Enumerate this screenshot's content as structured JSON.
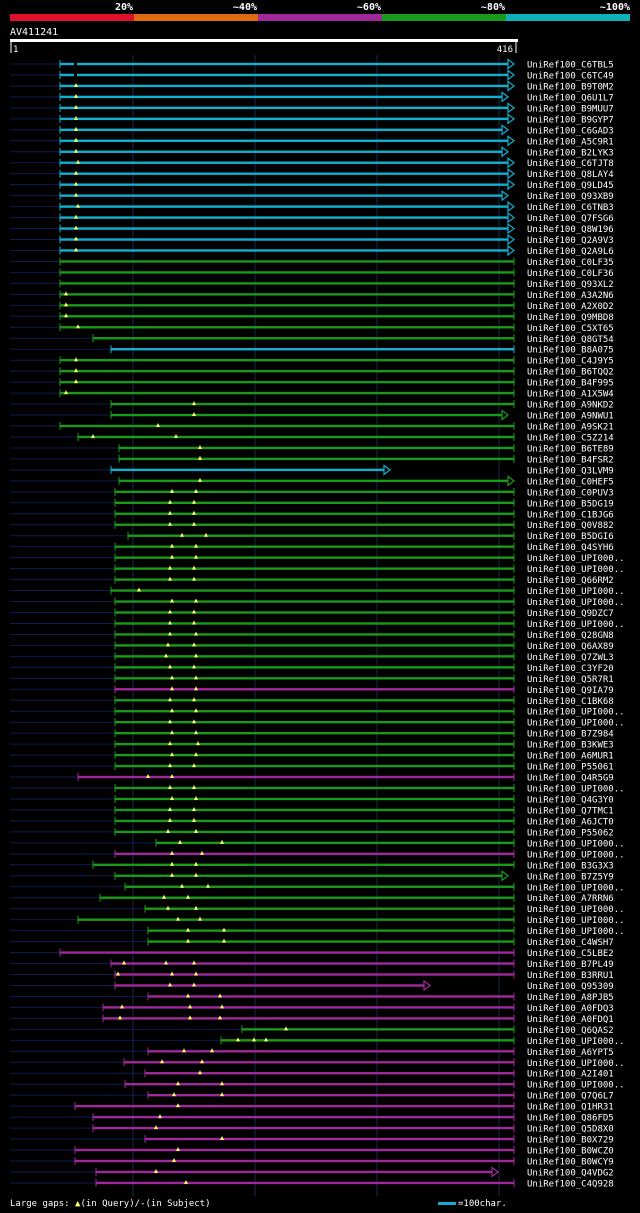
{
  "header": {
    "scale_labels": [
      "20%",
      "~40%",
      "~60%",
      "~80%",
      "~100%"
    ],
    "scale_colors": [
      "#e0102a",
      "#e06a10",
      "#a0289a",
      "#1a9a1a",
      "#10b0b8"
    ],
    "query_name": "AV411241",
    "ruler_start": "1",
    "ruler_end": "416"
  },
  "footer": {
    "gaps_label": "Large gaps: ",
    "query_marker": "▲",
    "query_text": "(in Query)/",
    "subject_marker": "-",
    "subject_text": "(in Subject)",
    "legend_text": "=100char."
  },
  "colors": {
    "cyan": "#10b0d0",
    "green": "#1a9a1a",
    "purple": "#a0289a",
    "navy": "#101a50",
    "grid": "#1a2a4a"
  },
  "hits": [
    {
      "label": "UniRef100_C6TBL5",
      "color": "cyan",
      "start": 60,
      "end": 514,
      "end_mark": "tri",
      "markers": [],
      "dot": 75
    },
    {
      "label": "UniRef100_C6TC49",
      "color": "cyan",
      "start": 60,
      "end": 514,
      "end_mark": "tri",
      "markers": [],
      "dot": 75
    },
    {
      "label": "UniRef100_B9T0M2",
      "color": "cyan",
      "start": 60,
      "end": 514,
      "end_mark": "tri",
      "markers": [
        76
      ]
    },
    {
      "label": "UniRef100_Q6U1L7",
      "color": "cyan",
      "start": 60,
      "end": 508,
      "end_mark": "tri",
      "markers": [
        76
      ]
    },
    {
      "label": "UniRef100_B9MUU7",
      "color": "cyan",
      "start": 60,
      "end": 514,
      "end_mark": "tri",
      "markers": [
        76
      ]
    },
    {
      "label": "UniRef100_B9GYP7",
      "color": "cyan",
      "start": 60,
      "end": 514,
      "end_mark": "tri",
      "markers": [
        76
      ]
    },
    {
      "label": "UniRef100_C6GAD3",
      "color": "cyan",
      "start": 60,
      "end": 508,
      "end_mark": "tri",
      "markers": [
        76
      ]
    },
    {
      "label": "UniRef100_A5C9R1",
      "color": "cyan",
      "start": 60,
      "end": 514,
      "end_mark": "tri",
      "markers": [
        76
      ]
    },
    {
      "label": "UniRef100_B2LYK3",
      "color": "cyan",
      "start": 60,
      "end": 508,
      "end_mark": "tri",
      "markers": [
        76
      ]
    },
    {
      "label": "UniRef100_C6TJT8",
      "color": "cyan",
      "start": 60,
      "end": 514,
      "end_mark": "tri",
      "markers": [
        78
      ]
    },
    {
      "label": "UniRef100_Q8LAY4",
      "color": "cyan",
      "start": 60,
      "end": 514,
      "end_mark": "tri",
      "markers": [
        76
      ]
    },
    {
      "label": "UniRef100_Q9LD45",
      "color": "cyan",
      "start": 60,
      "end": 514,
      "end_mark": "tri",
      "markers": [
        76
      ]
    },
    {
      "label": "UniRef100_Q93XB9",
      "color": "cyan",
      "start": 60,
      "end": 508,
      "end_mark": "tri",
      "markers": [
        76
      ]
    },
    {
      "label": "UniRef100_C6TNB3",
      "color": "cyan",
      "start": 60,
      "end": 514,
      "end_mark": "tri",
      "markers": [
        78
      ]
    },
    {
      "label": "UniRef100_Q7FSG6",
      "color": "cyan",
      "start": 60,
      "end": 514,
      "end_mark": "tri",
      "markers": [
        76
      ]
    },
    {
      "label": "UniRef100_Q8W196",
      "color": "cyan",
      "start": 60,
      "end": 514,
      "end_mark": "tri",
      "markers": [
        76
      ]
    },
    {
      "label": "UniRef100_Q2A9V3",
      "color": "cyan",
      "start": 60,
      "end": 514,
      "end_mark": "tri",
      "markers": [
        76
      ]
    },
    {
      "label": "UniRef100_Q2A9L6",
      "color": "cyan",
      "start": 60,
      "end": 514,
      "end_mark": "tri",
      "markers": [
        76
      ]
    },
    {
      "label": "UniRef100_C0LF35",
      "color": "green",
      "start": 60,
      "end": 514,
      "end_mark": "line",
      "markers": []
    },
    {
      "label": "UniRef100_C0LF36",
      "color": "green",
      "start": 60,
      "end": 514,
      "end_mark": "line",
      "markers": []
    },
    {
      "label": "UniRef100_Q93XL2",
      "color": "green",
      "start": 60,
      "end": 514,
      "end_mark": "line",
      "markers": []
    },
    {
      "label": "UniRef100_A3A2N6",
      "color": "green",
      "start": 60,
      "end": 514,
      "end_mark": "line",
      "markers": [
        66
      ]
    },
    {
      "label": "UniRef100_A2X0D2",
      "color": "green",
      "start": 60,
      "end": 514,
      "end_mark": "line",
      "markers": [
        66
      ]
    },
    {
      "label": "UniRef100_Q9MBD8",
      "color": "green",
      "start": 60,
      "end": 514,
      "end_mark": "line",
      "markers": [
        66
      ]
    },
    {
      "label": "UniRef100_C5XT65",
      "color": "green",
      "start": 60,
      "end": 514,
      "end_mark": "line",
      "markers": [
        78
      ]
    },
    {
      "label": "UniRef100_Q8GT54",
      "color": "green",
      "start": 93,
      "end": 514,
      "end_mark": "line",
      "markers": []
    },
    {
      "label": "UniRef100_B8A075",
      "color": "cyan",
      "start": 111,
      "end": 514,
      "end_mark": "line",
      "markers": []
    },
    {
      "label": "UniRef100_C4J9Y5",
      "color": "green",
      "start": 60,
      "end": 514,
      "end_mark": "line",
      "markers": [
        76
      ]
    },
    {
      "label": "UniRef100_B6TQQ2",
      "color": "green",
      "start": 60,
      "end": 514,
      "end_mark": "line",
      "markers": [
        76
      ]
    },
    {
      "label": "UniRef100_B4F995",
      "color": "green",
      "start": 60,
      "end": 514,
      "end_mark": "line",
      "markers": [
        76
      ]
    },
    {
      "label": "UniRef100_A1X5W4",
      "color": "green",
      "start": 60,
      "end": 514,
      "end_mark": "line",
      "markers": [
        66
      ]
    },
    {
      "label": "UniRef100_A9NKD2",
      "color": "green",
      "start": 111,
      "end": 514,
      "end_mark": "line",
      "markers": [
        194
      ]
    },
    {
      "label": "UniRef100_A9NWU1",
      "color": "green",
      "start": 111,
      "end": 508,
      "end_mark": "tri",
      "markers": [
        194
      ]
    },
    {
      "label": "UniRef100_A9SK21",
      "color": "green",
      "start": 60,
      "end": 514,
      "end_mark": "line",
      "markers": [
        158
      ]
    },
    {
      "label": "UniRef100_C5Z214",
      "color": "green",
      "start": 78,
      "end": 514,
      "end_mark": "line",
      "markers": [
        93,
        176
      ]
    },
    {
      "label": "UniRef100_B6TE89",
      "color": "green",
      "start": 119,
      "end": 514,
      "end_mark": "line",
      "markers": [
        200
      ]
    },
    {
      "label": "UniRef100_B4FSR2",
      "color": "green",
      "start": 119,
      "end": 514,
      "end_mark": "line",
      "markers": [
        200
      ]
    },
    {
      "label": "UniRef100_Q3LVM9",
      "color": "cyan",
      "start": 111,
      "end": 390,
      "end_mark": "tri",
      "markers": []
    },
    {
      "label": "UniRef100_C0HEF5",
      "color": "green",
      "start": 119,
      "end": 514,
      "end_mark": "tri",
      "markers": [
        200
      ]
    },
    {
      "label": "UniRef100_C0PUV3",
      "color": "green",
      "start": 115,
      "end": 514,
      "end_mark": "line",
      "markers": [
        172,
        196
      ]
    },
    {
      "label": "UniRef100_B5DG19",
      "color": "green",
      "start": 115,
      "end": 514,
      "end_mark": "line",
      "markers": [
        170,
        194
      ]
    },
    {
      "label": "UniRef100_C1BJG6",
      "color": "green",
      "start": 115,
      "end": 514,
      "end_mark": "line",
      "markers": [
        170,
        194
      ]
    },
    {
      "label": "UniRef100_Q0V882",
      "color": "green",
      "start": 115,
      "end": 514,
      "end_mark": "line",
      "markers": [
        170,
        194
      ]
    },
    {
      "label": "UniRef100_B5DGI6",
      "color": "green",
      "start": 128,
      "end": 514,
      "end_mark": "line",
      "markers": [
        182,
        206
      ]
    },
    {
      "label": "UniRef100_Q4SYH6",
      "color": "green",
      "start": 115,
      "end": 514,
      "end_mark": "line",
      "markers": [
        172,
        196
      ]
    },
    {
      "label": "UniRef100_UPI000..",
      "color": "green",
      "start": 115,
      "end": 514,
      "end_mark": "line",
      "markers": [
        172,
        196
      ]
    },
    {
      "label": "UniRef100_UPI000..",
      "color": "green",
      "start": 115,
      "end": 514,
      "end_mark": "line",
      "markers": [
        170,
        194
      ]
    },
    {
      "label": "UniRef100_Q66RM2",
      "color": "green",
      "start": 115,
      "end": 514,
      "end_mark": "line",
      "markers": [
        170,
        194
      ]
    },
    {
      "label": "UniRef100_UPI000..",
      "color": "green",
      "start": 111,
      "end": 514,
      "end_mark": "line",
      "markers": [
        139
      ]
    },
    {
      "label": "UniRef100_UPI000..",
      "color": "green",
      "start": 115,
      "end": 514,
      "end_mark": "line",
      "markers": [
        172,
        196
      ]
    },
    {
      "label": "UniRef100_Q9DZC7",
      "color": "green",
      "start": 115,
      "end": 514,
      "end_mark": "line",
      "markers": [
        170,
        194
      ]
    },
    {
      "label": "UniRef100_UPI000..",
      "color": "green",
      "start": 115,
      "end": 514,
      "end_mark": "line",
      "markers": [
        170,
        194
      ]
    },
    {
      "label": "UniRef100_Q28GN8",
      "color": "green",
      "start": 115,
      "end": 514,
      "end_mark": "line",
      "markers": [
        170,
        196
      ]
    },
    {
      "label": "UniRef100_Q6AX89",
      "color": "green",
      "start": 115,
      "end": 514,
      "end_mark": "line",
      "markers": [
        168,
        194
      ]
    },
    {
      "label": "UniRef100_Q7ZWL3",
      "color": "green",
      "start": 115,
      "end": 514,
      "end_mark": "line",
      "markers": [
        166,
        196
      ]
    },
    {
      "label": "UniRef100_C3YF20",
      "color": "green",
      "start": 115,
      "end": 514,
      "end_mark": "line",
      "markers": [
        170,
        194
      ]
    },
    {
      "label": "UniRef100_Q5R7R1",
      "color": "green",
      "start": 115,
      "end": 514,
      "end_mark": "line",
      "markers": [
        172,
        196
      ]
    },
    {
      "label": "UniRef100_Q9IA79",
      "color": "purple",
      "start": 115,
      "end": 514,
      "end_mark": "line",
      "markers": [
        172,
        196
      ]
    },
    {
      "label": "UniRef100_C1BK68",
      "color": "green",
      "start": 115,
      "end": 514,
      "end_mark": "line",
      "markers": [
        170,
        194
      ]
    },
    {
      "label": "UniRef100_UPI000..",
      "color": "green",
      "start": 115,
      "end": 514,
      "end_mark": "line",
      "markers": [
        172,
        196
      ]
    },
    {
      "label": "UniRef100_UPI000..",
      "color": "green",
      "start": 115,
      "end": 514,
      "end_mark": "line",
      "markers": [
        170,
        194
      ]
    },
    {
      "label": "UniRef100_B7Z984",
      "color": "green",
      "start": 115,
      "end": 514,
      "end_mark": "line",
      "markers": [
        172,
        196
      ]
    },
    {
      "label": "UniRef100_B3KWE3",
      "color": "green",
      "start": 115,
      "end": 514,
      "end_mark": "line",
      "markers": [
        170,
        198
      ]
    },
    {
      "label": "UniRef100_A6MUR1",
      "color": "green",
      "start": 115,
      "end": 514,
      "end_mark": "line",
      "markers": [
        172,
        196
      ]
    },
    {
      "label": "UniRef100_P55061",
      "color": "green",
      "start": 115,
      "end": 514,
      "end_mark": "line",
      "markers": [
        170,
        194
      ]
    },
    {
      "label": "UniRef100_Q4R5G9",
      "color": "purple",
      "start": 78,
      "end": 514,
      "end_mark": "line",
      "markers": [
        148,
        172
      ]
    },
    {
      "label": "UniRef100_UPI000..",
      "color": "green",
      "start": 115,
      "end": 514,
      "end_mark": "line",
      "markers": [
        170,
        194
      ]
    },
    {
      "label": "UniRef100_Q4G3Y0",
      "color": "green",
      "start": 115,
      "end": 514,
      "end_mark": "line",
      "markers": [
        172,
        196
      ]
    },
    {
      "label": "UniRef100_Q7TMC1",
      "color": "green",
      "start": 115,
      "end": 514,
      "end_mark": "line",
      "markers": [
        170,
        194
      ]
    },
    {
      "label": "UniRef100_A6JCT0",
      "color": "green",
      "start": 115,
      "end": 514,
      "end_mark": "line",
      "markers": [
        170,
        194
      ]
    },
    {
      "label": "UniRef100_P55062",
      "color": "green",
      "start": 115,
      "end": 514,
      "end_mark": "line",
      "markers": [
        168,
        196
      ]
    },
    {
      "label": "UniRef100_UPI000..",
      "color": "green",
      "start": 156,
      "end": 514,
      "end_mark": "line",
      "markers": [
        180,
        222
      ]
    },
    {
      "label": "UniRef100_UPI000..",
      "color": "purple",
      "start": 115,
      "end": 514,
      "end_mark": "line",
      "markers": [
        172,
        202
      ]
    },
    {
      "label": "UniRef100_B3G3X3",
      "color": "green",
      "start": 93,
      "end": 514,
      "end_mark": "line",
      "markers": [
        172,
        196
      ]
    },
    {
      "label": "UniRef100_B7Z5Y9",
      "color": "green",
      "start": 115,
      "end": 508,
      "end_mark": "tri",
      "markers": [
        172,
        196
      ]
    },
    {
      "label": "UniRef100_UPI000..",
      "color": "green",
      "start": 125,
      "end": 514,
      "end_mark": "line",
      "markers": [
        182,
        208
      ]
    },
    {
      "label": "UniRef100_A7RRN6",
      "color": "green",
      "start": 100,
      "end": 514,
      "end_mark": "line",
      "markers": [
        164,
        188
      ]
    },
    {
      "label": "UniRef100_UPI000..",
      "color": "green",
      "start": 145,
      "end": 514,
      "end_mark": "line",
      "markers": [
        168,
        196
      ]
    },
    {
      "label": "UniRef100_UPI000..",
      "color": "green",
      "start": 78,
      "end": 514,
      "end_mark": "line",
      "markers": [
        178,
        200
      ]
    },
    {
      "label": "UniRef100_UPI000..",
      "color": "green",
      "start": 148,
      "end": 514,
      "end_mark": "line",
      "markers": [
        188,
        224
      ]
    },
    {
      "label": "UniRef100_C4WSH7",
      "color": "green",
      "start": 148,
      "end": 514,
      "end_mark": "line",
      "markers": [
        188,
        224
      ]
    },
    {
      "label": "UniRef100_C5LBE2",
      "color": "purple",
      "start": 60,
      "end": 514,
      "end_mark": "line",
      "markers": []
    },
    {
      "label": "UniRef100_B7PL49",
      "color": "purple",
      "start": 111,
      "end": 514,
      "end_mark": "line",
      "markers": [
        124,
        166,
        194
      ]
    },
    {
      "label": "UniRef100_B3RRU1",
      "color": "purple",
      "start": 115,
      "end": 514,
      "end_mark": "line",
      "markers": [
        118,
        172,
        196
      ]
    },
    {
      "label": "UniRef100_Q95309",
      "color": "purple",
      "start": 115,
      "end": 430,
      "end_mark": "tri",
      "markers": [
        170,
        194
      ]
    },
    {
      "label": "UniRef100_A8PJB5",
      "color": "purple",
      "start": 148,
      "end": 514,
      "end_mark": "line",
      "markers": [
        188,
        220
      ]
    },
    {
      "label": "UniRef100_A0FDQ3",
      "color": "purple",
      "start": 103,
      "end": 514,
      "end_mark": "line",
      "markers": [
        122,
        190,
        222
      ]
    },
    {
      "label": "UniRef100_A0FDQ1",
      "color": "purple",
      "start": 103,
      "end": 514,
      "end_mark": "line",
      "markers": [
        120,
        190,
        220
      ]
    },
    {
      "label": "UniRef100_Q6QAS2",
      "color": "green",
      "start": 242,
      "end": 514,
      "end_mark": "line",
      "markers": [
        286
      ]
    },
    {
      "label": "UniRef100_UPI000..",
      "color": "green",
      "start": 221,
      "end": 514,
      "end_mark": "line",
      "markers": [
        238,
        254,
        266
      ]
    },
    {
      "label": "UniRef100_A6YPT5",
      "color": "purple",
      "start": 148,
      "end": 514,
      "end_mark": "line",
      "markers": [
        184,
        212
      ]
    },
    {
      "label": "UniRef100_UPI000..",
      "color": "purple",
      "start": 124,
      "end": 514,
      "end_mark": "line",
      "markers": [
        162,
        202
      ]
    },
    {
      "label": "UniRef100_A2I401",
      "color": "purple",
      "start": 145,
      "end": 514,
      "end_mark": "line",
      "markers": [
        200
      ]
    },
    {
      "label": "UniRef100_UPI000..",
      "color": "purple",
      "start": 125,
      "end": 514,
      "end_mark": "line",
      "markers": [
        178,
        222
      ]
    },
    {
      "label": "UniRef100_Q7Q6L7",
      "color": "purple",
      "start": 148,
      "end": 514,
      "end_mark": "line",
      "markers": [
        174,
        222
      ]
    },
    {
      "label": "UniRef100_Q1HR31",
      "color": "purple",
      "start": 75,
      "end": 514,
      "end_mark": "line",
      "markers": [
        178
      ]
    },
    {
      "label": "UniRef100_Q86FD5",
      "color": "purple",
      "start": 93,
      "end": 514,
      "end_mark": "line",
      "markers": [
        160
      ]
    },
    {
      "label": "UniRef100_Q5D8X0",
      "color": "purple",
      "start": 93,
      "end": 514,
      "end_mark": "line",
      "markers": [
        156
      ]
    },
    {
      "label": "UniRef100_B0X729",
      "color": "purple",
      "start": 145,
      "end": 514,
      "end_mark": "line",
      "markers": [
        222
      ]
    },
    {
      "label": "UniRef100_B0WCZ0",
      "color": "purple",
      "start": 75,
      "end": 514,
      "end_mark": "line",
      "markers": [
        178
      ]
    },
    {
      "label": "UniRef100_B0WCY9",
      "color": "purple",
      "start": 75,
      "end": 514,
      "end_mark": "line",
      "markers": [
        174
      ]
    },
    {
      "label": "UniRef100_Q4VDG2",
      "color": "purple",
      "start": 96,
      "end": 498,
      "end_mark": "tri",
      "markers": [
        156
      ]
    },
    {
      "label": "UniRef100_C4Q928",
      "color": "purple",
      "start": 96,
      "end": 514,
      "end_mark": "line",
      "markers": [
        186
      ]
    }
  ]
}
